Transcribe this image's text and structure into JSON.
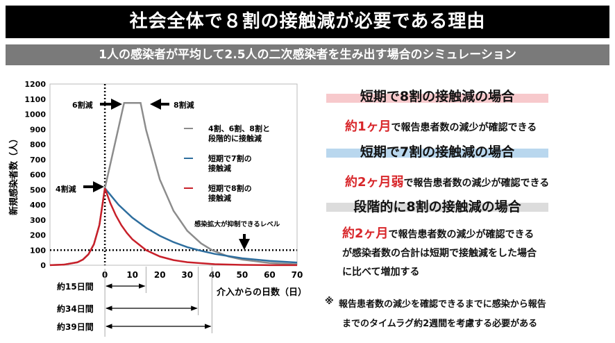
{
  "header": {
    "title": "社会全体で８割の接触減が必要である理由",
    "subtitle": "1人の感染者が平均して2.5人の二次感染者を生み出す場合のシミュレーション"
  },
  "chart_data": {
    "type": "line",
    "ylabel": "新規感染者数（人）",
    "xlabel": "介入からの日数（日）",
    "xlim": [
      -20,
      70
    ],
    "ylim": [
      0,
      1200
    ],
    "xticks": [
      "0",
      "10",
      "20",
      "30",
      "40",
      "50",
      "60",
      "70"
    ],
    "xtick_values": [
      0,
      10,
      20,
      30,
      40,
      50,
      60,
      70
    ],
    "yticks": [
      "0",
      "100",
      "200",
      "300",
      "400",
      "500",
      "600",
      "700",
      "800",
      "900",
      "1000",
      "1100",
      "1200"
    ],
    "ytick_values": [
      0,
      100,
      200,
      300,
      400,
      500,
      600,
      700,
      800,
      900,
      1000,
      1100,
      1200
    ],
    "series": [
      {
        "name": "4割、6割、8割と段階的に接触減",
        "legend": [
          "4割、6割、8割と",
          "段階的に接触減"
        ],
        "color": "#8c8c8c",
        "x": [
          -20,
          -15,
          -10,
          -8,
          -6,
          -4,
          -2,
          0,
          7,
          13,
          15,
          20,
          25,
          30,
          35,
          39,
          45,
          50,
          60,
          70
        ],
        "y": [
          0.75,
          3.8,
          19.5,
          37.5,
          72,
          139,
          266,
          510,
          1075,
          1075,
          896,
          568,
          360,
          228,
          145,
          100,
          58,
          37,
          15,
          6
        ]
      },
      {
        "name": "短期で7割の接触減",
        "legend": [
          "短期で7割の",
          "接触減"
        ],
        "color": "#2e6e9e",
        "x": [
          0,
          5,
          10,
          15,
          20,
          25,
          30,
          34,
          40,
          50,
          60,
          70
        ],
        "y": [
          510,
          400,
          315,
          248,
          195,
          153,
          120,
          100,
          75,
          46,
          29,
          18
        ]
      },
      {
        "name": "短期で8割の接触減",
        "legend": [
          "短期で8割の",
          "接触減"
        ],
        "color": "#c8202a",
        "x": [
          -20,
          -15,
          -10,
          -8,
          -6,
          -4,
          -2,
          0,
          2,
          4,
          6,
          8,
          10,
          15,
          20,
          25,
          30,
          40,
          50,
          60,
          70
        ],
        "y": [
          0.75,
          3.8,
          19.5,
          37.5,
          72,
          139,
          266,
          510,
          410,
          330,
          265,
          214,
          172,
          100,
          58,
          34,
          20,
          6.7,
          2.3,
          0.8,
          0.3
        ]
      }
    ],
    "threshold": {
      "value": 100,
      "label": "感染拡大が抑制できるレベル"
    },
    "annotations": {
      "cut40": "4割減",
      "cut60": "6割減",
      "cut80": "8割減"
    },
    "durations": [
      {
        "label": "約15日間",
        "days": 15
      },
      {
        "label": "約34日間",
        "days": 34
      },
      {
        "label": "約39日間",
        "days": 39
      }
    ]
  },
  "panel": {
    "s1": {
      "heading": "短期で8割の接触減の場合",
      "highlight": "約1ヶ月",
      "text": "で報告患者数の減少が確認できる",
      "band": "#f7c9cc"
    },
    "s2": {
      "heading": "短期で7割の接触減の場合",
      "highlight": "約2ヶ月弱",
      "text": "で報告患者数の減少が確認できる",
      "band": "#b9d7ee"
    },
    "s3": {
      "heading": "段階的に8割の接触減の場合",
      "highlight": "約2ヶ月",
      "text": "で報告患者数の減少が確認できる",
      "line2": "が感染者数の合計は短期で接触減をした場合",
      "line3": "に比べて増加する",
      "band": "#dcdcdc"
    },
    "note": {
      "mark": "※",
      "line1": "報告患者数の減少を確認できるまでに感染から報告",
      "line2": "までのタイムラグ約2週間を考慮する必要がある"
    }
  }
}
